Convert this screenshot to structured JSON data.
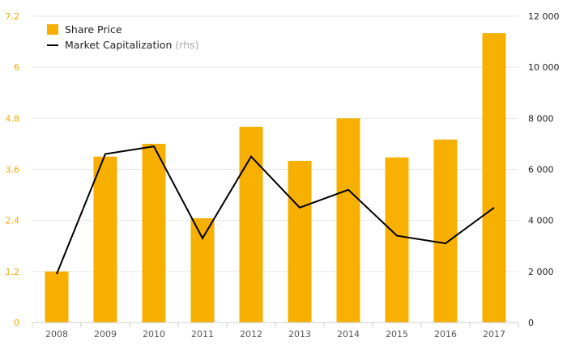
{
  "chart_data": {
    "type": "bar",
    "categories": [
      "2008",
      "2009",
      "2010",
      "2011",
      "2012",
      "2013",
      "2014",
      "2015",
      "2016",
      "2017"
    ],
    "series": [
      {
        "name": "Share Price",
        "type": "bar",
        "axis": "left",
        "color": "#f7b000",
        "values": [
          1.2,
          3.9,
          4.2,
          2.45,
          4.6,
          3.8,
          4.8,
          3.88,
          4.3,
          6.8
        ]
      },
      {
        "name": "Market Capitalization",
        "name_suffix": "(rhs)",
        "type": "line",
        "axis": "right",
        "color": "#000000",
        "values": [
          1900,
          6600,
          6900,
          3300,
          6500,
          4500,
          5200,
          3400,
          3100,
          4500
        ]
      }
    ],
    "y_left": {
      "ylim": [
        0,
        7.2
      ],
      "ticks": [
        0,
        1.2,
        2.4,
        3.6,
        4.8,
        6,
        7.2
      ],
      "tick_labels": [
        "0",
        "1.2",
        "2.4",
        "3.6",
        "4.8",
        "6",
        "7.2"
      ],
      "color": "#f2a900"
    },
    "y_right": {
      "ylim": [
        0,
        12000
      ],
      "ticks": [
        0,
        2000,
        4000,
        6000,
        8000,
        10000,
        12000
      ],
      "tick_labels": [
        "0",
        "2 000",
        "4 000",
        "6 000",
        "8 000",
        "10 000",
        "12 000"
      ],
      "color": "#222222"
    },
    "grid": true,
    "legend_position": "top-left"
  }
}
